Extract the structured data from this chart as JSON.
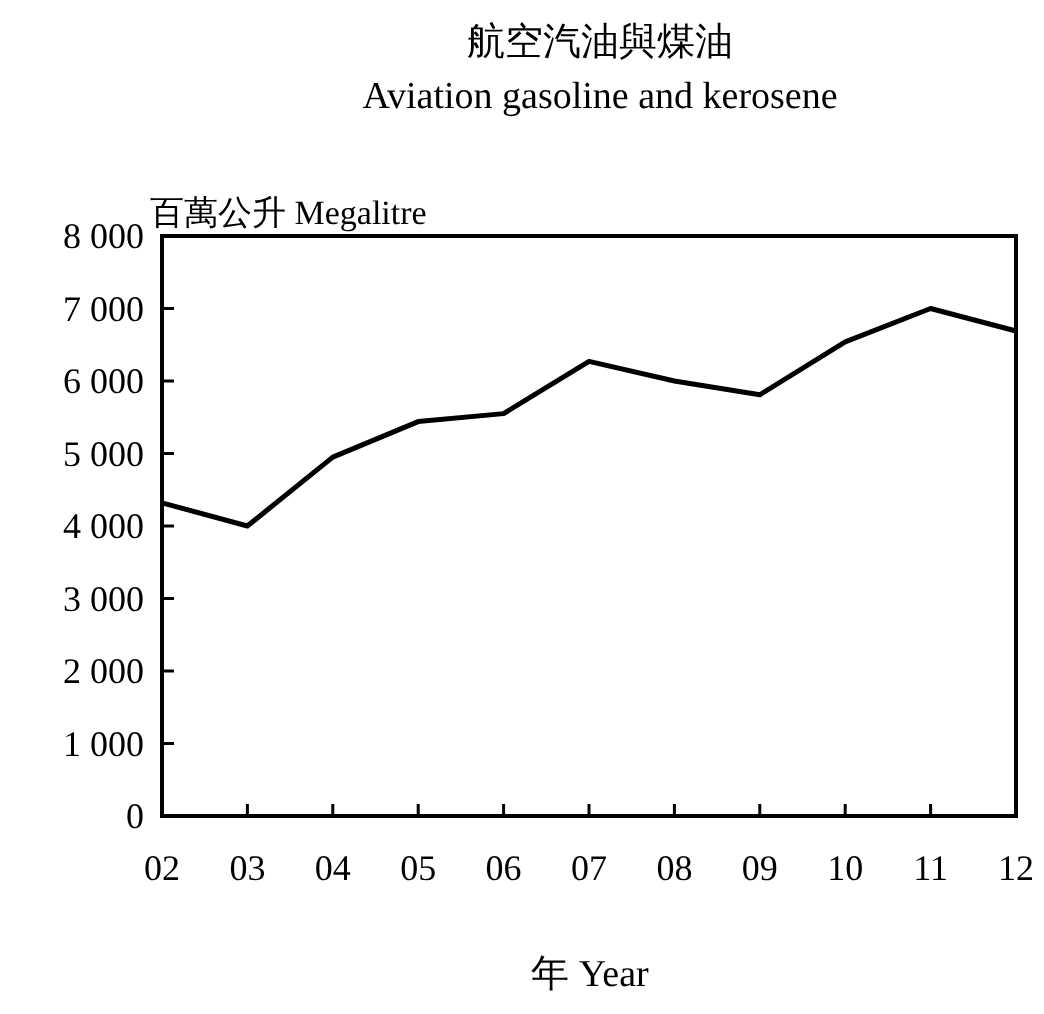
{
  "chart_data": {
    "type": "line",
    "title": "航空汽油與煤油",
    "subtitle": "Aviation gasoline and kerosene",
    "xlabel": "年 Year",
    "ylabel": "百萬公升 Megalitre",
    "categories": [
      "02",
      "03",
      "04",
      "05",
      "06",
      "07",
      "08",
      "09",
      "10",
      "11",
      "12"
    ],
    "values": [
      4320,
      4000,
      4950,
      5440,
      5550,
      6270,
      6000,
      5810,
      6540,
      7000,
      6690
    ],
    "color": "#000000",
    "ylim": [
      0,
      8000
    ],
    "yticks": [
      0,
      {
        "value": 1000,
        "label": "1 000"
      },
      {
        "value": 2000,
        "label": "2 000"
      },
      {
        "value": 3000,
        "label": "3 000"
      },
      {
        "value": 4000,
        "label": "4 000"
      },
      {
        "value": 5000,
        "label": "5 000"
      },
      {
        "value": 6000,
        "label": "6 000"
      },
      {
        "value": 7000,
        "label": "7 000"
      },
      {
        "value": 8000,
        "label": "8 000"
      }
    ],
    "grid": false
  }
}
